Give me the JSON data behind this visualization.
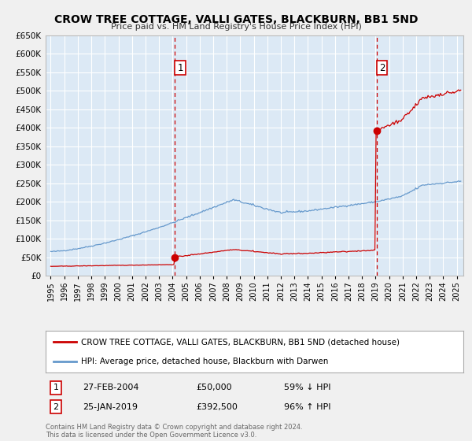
{
  "title": "CROW TREE COTTAGE, VALLI GATES, BLACKBURN, BB1 5ND",
  "subtitle": "Price paid vs. HM Land Registry's House Price Index (HPI)",
  "background_color": "#f0f0f0",
  "plot_bg_color": "#dce9f5",
  "grid_color": "#ffffff",
  "red_color": "#cc0000",
  "blue_color": "#6699cc",
  "ylim": [
    0,
    650000
  ],
  "yticks": [
    0,
    50000,
    100000,
    150000,
    200000,
    250000,
    300000,
    350000,
    400000,
    450000,
    500000,
    550000,
    600000,
    650000
  ],
  "xlim_start": 1994.6,
  "xlim_end": 2025.5,
  "transaction1": {
    "date": 2004.15,
    "price": 50000,
    "label": "1"
  },
  "transaction2": {
    "date": 2019.07,
    "price": 392500,
    "label": "2"
  },
  "legend_line1": "CROW TREE COTTAGE, VALLI GATES, BLACKBURN, BB1 5ND (detached house)",
  "legend_line2": "HPI: Average price, detached house, Blackburn with Darwen",
  "table_row1_num": "1",
  "table_row1_date": "27-FEB-2004",
  "table_row1_price": "£50,000",
  "table_row1_hpi": "59% ↓ HPI",
  "table_row2_num": "2",
  "table_row2_date": "25-JAN-2019",
  "table_row2_price": "£392,500",
  "table_row2_hpi": "96% ↑ HPI",
  "footnote1": "Contains HM Land Registry data © Crown copyright and database right 2024.",
  "footnote2": "This data is licensed under the Open Government Licence v3.0."
}
